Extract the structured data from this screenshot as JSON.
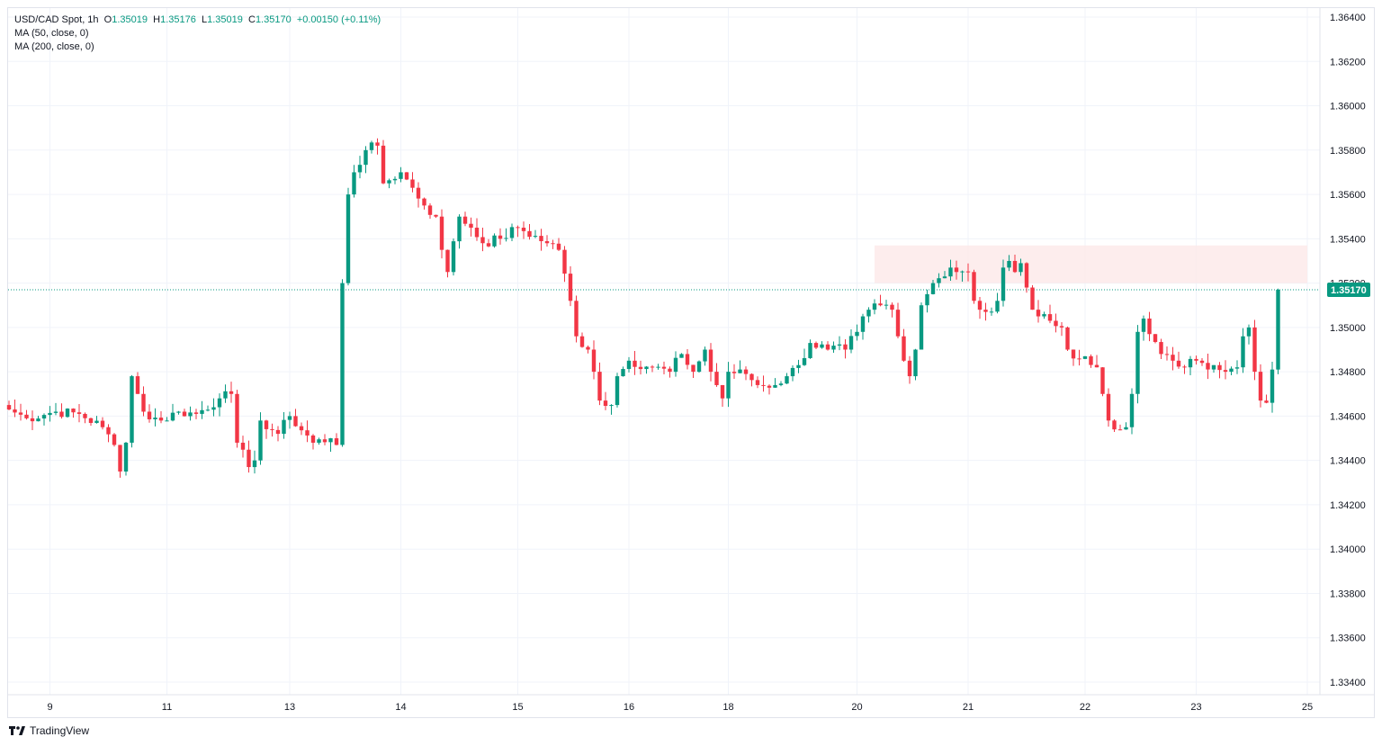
{
  "legend": {
    "symbol": "USD/CAD Spot, 1h",
    "open_label": "O",
    "open": "1.35019",
    "high_label": "H",
    "high": "1.35176",
    "low_label": "L",
    "low": "1.35019",
    "close_label": "C",
    "close": "1.35170",
    "change": "+0.00150 (+0.11%)",
    "ma50": "MA (50, close, 0)",
    "ma200": "MA (200, close, 0)"
  },
  "branding": {
    "name": "TradingView",
    "icon": "tradingview-logo-icon"
  },
  "colors": {
    "up": "#089981",
    "down": "#f23645",
    "zone": "#fde9e9",
    "grid": "#f0f3fa",
    "price_line": "#089981"
  },
  "chart_data": {
    "type": "candlestick",
    "title": "USD/CAD Spot, 1h",
    "ylim": [
      1.333,
      1.3655
    ],
    "y_ticks": [
      "1.36400",
      "1.36200",
      "1.36000",
      "1.35800",
      "1.35600",
      "1.35400",
      "1.35200",
      "1.35000",
      "1.34800",
      "1.34600",
      "1.34400",
      "1.34200",
      "1.34000",
      "1.33800",
      "1.33600",
      "1.33400"
    ],
    "x_ticks": [
      {
        "label": "9",
        "index": 7
      },
      {
        "label": "11",
        "index": 27
      },
      {
        "label": "13",
        "index": 48
      },
      {
        "label": "14",
        "index": 67
      },
      {
        "label": "15",
        "index": 87
      },
      {
        "label": "16",
        "index": 106
      },
      {
        "label": "18",
        "index": 123
      },
      {
        "label": "20",
        "index": 145
      },
      {
        "label": "21",
        "index": 164
      },
      {
        "label": "22",
        "index": 184
      },
      {
        "label": "23",
        "index": 203
      },
      {
        "label": "25",
        "index": 222
      }
    ],
    "last_price": "1.35170",
    "last_price_value": 1.3517,
    "resistance_zone": {
      "from_index": 148,
      "to_index": 222,
      "low": 1.352,
      "high": 1.3537
    },
    "anchors": [
      [
        0,
        1.3463
      ],
      [
        3,
        1.3459
      ],
      [
        8,
        1.3462
      ],
      [
        12,
        1.3461
      ],
      [
        16,
        1.3455
      ],
      [
        18,
        1.3447
      ],
      [
        19,
        1.3435
      ],
      [
        20,
        1.3448
      ],
      [
        21,
        1.3478
      ],
      [
        22,
        1.347
      ],
      [
        23,
        1.3462
      ],
      [
        26,
        1.3458
      ],
      [
        29,
        1.3462
      ],
      [
        32,
        1.3461
      ],
      [
        36,
        1.3468
      ],
      [
        38,
        1.347
      ],
      [
        39,
        1.3448
      ],
      [
        41,
        1.3437
      ],
      [
        42,
        1.344
      ],
      [
        43,
        1.3458
      ],
      [
        46,
        1.3452
      ],
      [
        48,
        1.346
      ],
      [
        52,
        1.3448
      ],
      [
        55,
        1.345
      ],
      [
        56,
        1.3447
      ],
      [
        57,
        1.352
      ],
      [
        58,
        1.356
      ],
      [
        59,
        1.357
      ],
      [
        61,
        1.358
      ],
      [
        63,
        1.3582
      ],
      [
        64,
        1.3565
      ],
      [
        67,
        1.357
      ],
      [
        69,
        1.3563
      ],
      [
        71,
        1.3555
      ],
      [
        73,
        1.355
      ],
      [
        74,
        1.3535
      ],
      [
        75,
        1.3525
      ],
      [
        77,
        1.355
      ],
      [
        79,
        1.3545
      ],
      [
        81,
        1.3538
      ],
      [
        84,
        1.354
      ],
      [
        87,
        1.3545
      ],
      [
        92,
        1.3538
      ],
      [
        94,
        1.3535
      ],
      [
        96,
        1.3512
      ],
      [
        97,
        1.3496
      ],
      [
        99,
        1.349
      ],
      [
        100,
        1.348
      ],
      [
        101,
        1.3467
      ],
      [
        103,
        1.3465
      ],
      [
        104,
        1.3478
      ],
      [
        106,
        1.3485
      ],
      [
        110,
        1.3482
      ],
      [
        113,
        1.348
      ],
      [
        115,
        1.3488
      ],
      [
        117,
        1.348
      ],
      [
        119,
        1.349
      ],
      [
        120,
        1.348
      ],
      [
        122,
        1.3468
      ],
      [
        123,
        1.348
      ],
      [
        126,
        1.3479
      ],
      [
        128,
        1.3474
      ],
      [
        131,
        1.3474
      ],
      [
        133,
        1.3478
      ],
      [
        135,
        1.3483
      ],
      [
        137,
        1.3493
      ],
      [
        140,
        1.349
      ],
      [
        143,
        1.349
      ],
      [
        145,
        1.3498
      ],
      [
        146,
        1.3505
      ],
      [
        147,
        1.3508
      ],
      [
        149,
        1.351
      ],
      [
        151,
        1.3508
      ],
      [
        152,
        1.3496
      ],
      [
        153,
        1.3485
      ],
      [
        154,
        1.3478
      ],
      [
        155,
        1.349
      ],
      [
        156,
        1.351
      ],
      [
        157,
        1.3515
      ],
      [
        158,
        1.352
      ],
      [
        160,
        1.3523
      ],
      [
        161,
        1.3527
      ],
      [
        162,
        1.3525
      ],
      [
        164,
        1.3525
      ],
      [
        165,
        1.3512
      ],
      [
        166,
        1.3508
      ],
      [
        167,
        1.3507
      ],
      [
        169,
        1.3512
      ],
      [
        170,
        1.3527
      ],
      [
        171,
        1.353
      ],
      [
        172,
        1.3525
      ],
      [
        173,
        1.3529
      ],
      [
        174,
        1.3518
      ],
      [
        175,
        1.3508
      ],
      [
        176,
        1.3505
      ],
      [
        177,
        1.3506
      ],
      [
        178,
        1.3503
      ],
      [
        180,
        1.35
      ],
      [
        181,
        1.349
      ],
      [
        182,
        1.3486
      ],
      [
        184,
        1.3487
      ],
      [
        186,
        1.3482
      ],
      [
        187,
        1.347
      ],
      [
        188,
        1.3458
      ],
      [
        189,
        1.3454
      ],
      [
        191,
        1.3455
      ],
      [
        192,
        1.347
      ],
      [
        193,
        1.3498
      ],
      [
        194,
        1.3504
      ],
      [
        195,
        1.3497
      ],
      [
        197,
        1.3488
      ],
      [
        199,
        1.3485
      ],
      [
        201,
        1.3482
      ],
      [
        203,
        1.3485
      ],
      [
        204,
        1.3484
      ],
      [
        206,
        1.3483
      ],
      [
        208,
        1.348
      ],
      [
        210,
        1.3482
      ],
      [
        211,
        1.3496
      ],
      [
        212,
        1.35
      ],
      [
        213,
        1.348
      ],
      [
        214,
        1.3467
      ],
      [
        215,
        1.3466
      ],
      [
        216,
        1.3481
      ],
      [
        217,
        1.3517
      ]
    ]
  }
}
